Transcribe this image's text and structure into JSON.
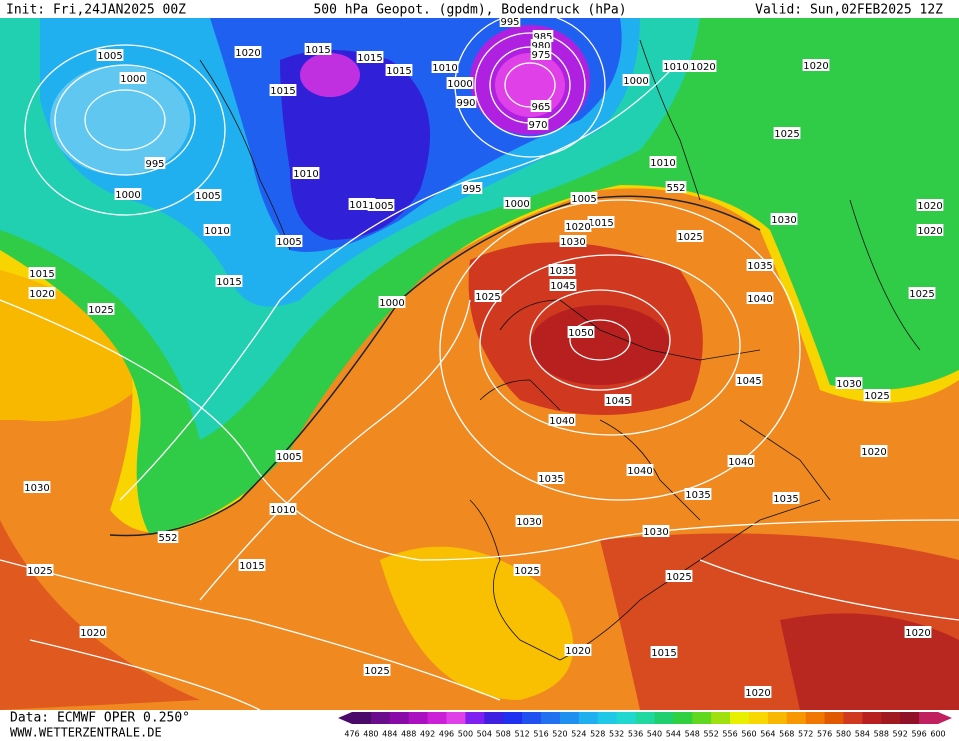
{
  "header": {
    "init": "Init: Fri,24JAN2025 00Z",
    "title": "500 hPa Geopot. (gpdm), Bodendruck (hPa)",
    "valid": "Valid: Sun,02FEB2025 12Z"
  },
  "footer": {
    "source": "Data: ECMWF OPER 0.250°",
    "site": "WWW.WETTERZENTRALE.DE"
  },
  "isobar_labels": [
    "1005",
    "1020",
    "1015",
    "1015",
    "1015",
    "1010",
    "1000",
    "990",
    "995",
    "985",
    "980",
    "975",
    "965",
    "970",
    "1000",
    "1010",
    "1020",
    "1020",
    "1000",
    "1015",
    "995",
    "1025",
    "1010",
    "1010",
    "995",
    "1005",
    "1000",
    "1000",
    "1005",
    "1010",
    "1005",
    "1015",
    "1020",
    "1030",
    "1020",
    "1010",
    "1005",
    "1030",
    "1025",
    "1020",
    "1015",
    "1035",
    "1035",
    "1045",
    "1015",
    "1020",
    "1025",
    "1040",
    "1025",
    "1000",
    "1025",
    "1050",
    "1045",
    "1030",
    "1025",
    "1045",
    "1040",
    "1005",
    "1020",
    "1040",
    "1040",
    "1030",
    "1035",
    "1035",
    "1035",
    "1010",
    "1030",
    "1030",
    "1015",
    "1025",
    "1025",
    "1025",
    "1020",
    "1020",
    "1020",
    "1015",
    "1025",
    "1020",
    "552",
    "552"
  ],
  "colorbar": {
    "labels": [
      476,
      480,
      484,
      488,
      492,
      496,
      500,
      504,
      508,
      512,
      516,
      520,
      524,
      528,
      532,
      536,
      540,
      544,
      548,
      552,
      556,
      560,
      564,
      568,
      572,
      576,
      580,
      584,
      588,
      592,
      596,
      600
    ],
    "colors": [
      "#4a0a6a",
      "#6a0c8c",
      "#8a0aa8",
      "#aa10c0",
      "#cc20d8",
      "#e040e8",
      "#8020f0",
      "#4020e0",
      "#2030f0",
      "#2050f0",
      "#2070f0",
      "#2090f0",
      "#20b0f0",
      "#20c8e8",
      "#20d8d0",
      "#20d8a0",
      "#20d070",
      "#30d040",
      "#60d820",
      "#a0e010",
      "#e8f000",
      "#f8d800",
      "#f8b800",
      "#f89800",
      "#f07800",
      "#e05800",
      "#d03820",
      "#b82020",
      "#a01820",
      "#901028",
      "#c02060"
    ]
  }
}
